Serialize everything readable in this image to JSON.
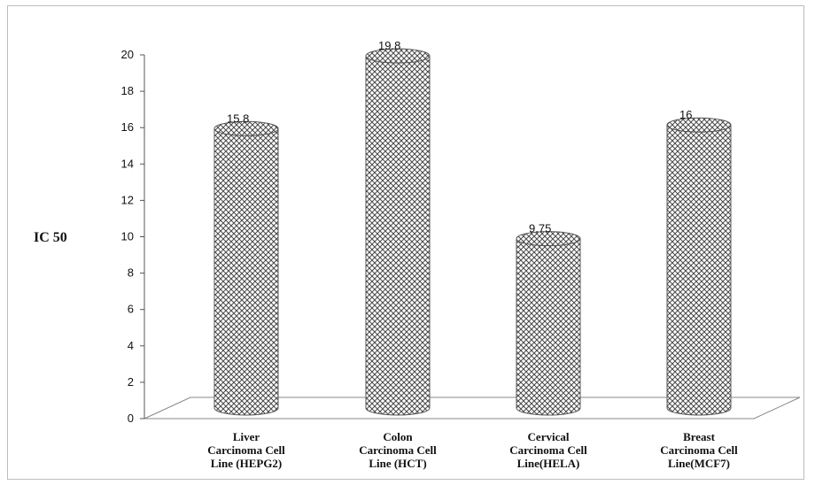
{
  "chart_data": {
    "type": "bar",
    "title": "",
    "xlabel": "",
    "ylabel": "IC 50",
    "categories": [
      [
        "Liver",
        "Carcinoma Cell",
        "Line (HEPG2)"
      ],
      [
        "Colon",
        "Carcinoma Cell",
        "Line (HCT)"
      ],
      [
        "Cervical",
        "Carcinoma Cell",
        "Line(HELA)"
      ],
      [
        "Breast",
        "Carcinoma Cell",
        "Line(MCF7)"
      ]
    ],
    "values": [
      15.8,
      19.8,
      9.75,
      16
    ],
    "data_labels": [
      "15.8",
      "19.8",
      "9.75",
      "16"
    ],
    "ylim": [
      0,
      20
    ],
    "yticks": [
      "0",
      "2",
      "4",
      "6",
      "8",
      "10",
      "12",
      "14",
      "16",
      "18",
      "20"
    ],
    "grid": false,
    "legend": "none",
    "bar_style": "3d-cylinder-hatched",
    "colors": {
      "bar_fill": "#ffffff",
      "bar_hatch": "#444444",
      "floor": "#ffffff",
      "floor_edge": "#888888",
      "text": "#111111"
    }
  }
}
